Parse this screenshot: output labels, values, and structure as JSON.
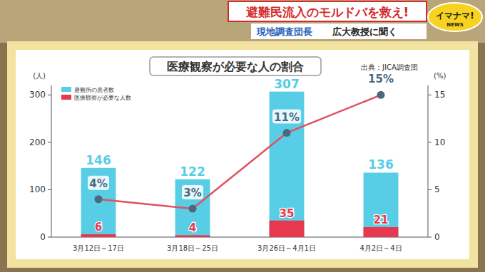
{
  "chart_data": {
    "type": "bar",
    "title": "医療観察が必要な人の割合",
    "annotations": [
      "避難民流入のモルドバを救え!",
      "現地調査団長",
      "広大教授に聞く",
      "イマナマ!",
      "NEWS",
      "出典：JICA調査団"
    ],
    "ylabel": "(人)",
    "y2label": "(%)",
    "categories": [
      "3月12日～17日",
      "3月18日～25日",
      "3月26日～4月1日",
      "4月2日～4日"
    ],
    "series": [
      {
        "name": "避難所の患者数",
        "type": "bar",
        "color": "#57cde6",
        "values": [
          146,
          122,
          307,
          136
        ],
        "data_labels": true
      },
      {
        "name": "医療観察が必要な人数",
        "type": "bar",
        "color": "#e8384f",
        "values": [
          6,
          4,
          35,
          21
        ],
        "data_labels": true
      },
      {
        "type": "line",
        "axis": "y2",
        "color": "#e0505e",
        "marker": "circle",
        "line_style": "solid",
        "values": [
          4,
          3,
          11,
          15
        ],
        "value_labels": [
          "4%",
          "3%",
          "11%",
          "15%"
        ],
        "data_labels": true
      }
    ],
    "ylim": [
      0,
      320
    ],
    "yticks": [
      0,
      100,
      200,
      300
    ],
    "y2lim": [
      0,
      16
    ],
    "y2ticks": [
      0,
      5,
      10,
      15
    ],
    "stacked": false,
    "grid": false,
    "legend": "upper left"
  }
}
